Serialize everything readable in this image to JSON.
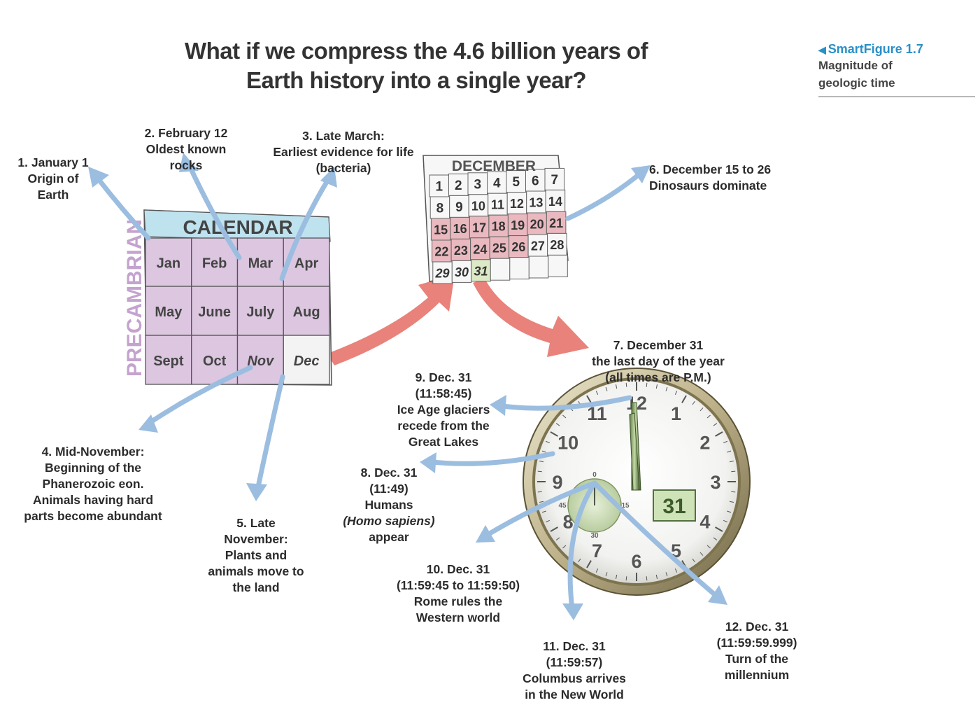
{
  "title_lines": [
    "What if we compress the 4.6 billion years of",
    "Earth history into a single year?"
  ],
  "smartfigure": {
    "label": "SmartFigure 1.7",
    "subtitle": "Magnitude of geologic time"
  },
  "calendar": {
    "header": "CALENDAR",
    "side_label": "PRECAMBRIAN",
    "months": [
      "Jan",
      "Feb",
      "Mar",
      "Apr",
      "May",
      "June",
      "July",
      "Aug",
      "Sept",
      "Oct",
      "Nov",
      "Dec"
    ]
  },
  "december": {
    "header": "DECEMBER",
    "days": [
      "1",
      "2",
      "3",
      "4",
      "5",
      "6",
      "7",
      "8",
      "9",
      "10",
      "11",
      "12",
      "13",
      "14",
      "15",
      "16",
      "17",
      "18",
      "19",
      "20",
      "21",
      "22",
      "23",
      "24",
      "25",
      "26",
      "27",
      "28",
      "29",
      "30",
      "31"
    ]
  },
  "clock": {
    "numerals": [
      "12",
      "1",
      "2",
      "3",
      "4",
      "5",
      "6",
      "7",
      "8",
      "9",
      "10",
      "11"
    ],
    "date_display": "31",
    "sub_dial": [
      "0",
      "15",
      "30",
      "45"
    ]
  },
  "labels": {
    "l1": [
      "1. January 1",
      "Origin of",
      "Earth"
    ],
    "l2": [
      "2. February 12",
      "Oldest known",
      "rocks"
    ],
    "l3": [
      "3. Late March:",
      "Earliest evidence for life",
      "(bacteria)"
    ],
    "l4": [
      "4. Mid-November:",
      "Beginning of the",
      "Phanerozoic eon.",
      "Animals having hard",
      "parts become abundant"
    ],
    "l5": [
      "5. Late",
      "November:",
      "Plants and",
      "animals move to",
      "the land"
    ],
    "l6": [
      "6. December 15 to 26",
      "Dinosaurs dominate"
    ],
    "l7": [
      "7. December 31",
      "the last day of the year",
      "(all times are P.M.)"
    ],
    "l8": [
      "8. Dec. 31",
      "(11:49)",
      "Humans",
      "(Homo sapiens)",
      "appear"
    ],
    "l9": [
      "9. Dec. 31",
      "(11:58:45)",
      "Ice Age glaciers",
      "recede from the",
      "Great Lakes"
    ],
    "l10": [
      "10. Dec. 31",
      "(11:59:45 to 11:59:50)",
      "Rome rules the",
      "Western world"
    ],
    "l11": [
      "11. Dec. 31",
      "(11:59:57)",
      "Columbus arrives",
      "in the New World"
    ],
    "l12": [
      "12. Dec. 31",
      "(11:59:59.999)",
      "Turn of the",
      "millennium"
    ]
  },
  "colors": {
    "month_fill": "#dcc6e0",
    "calendar_header": "#bfe2ef",
    "dec_highlight": "#e9b9bf",
    "blue_arrow": "#9bbde0",
    "red_arrow": "#e8827a",
    "smartfigure": "#2a8fc7"
  }
}
